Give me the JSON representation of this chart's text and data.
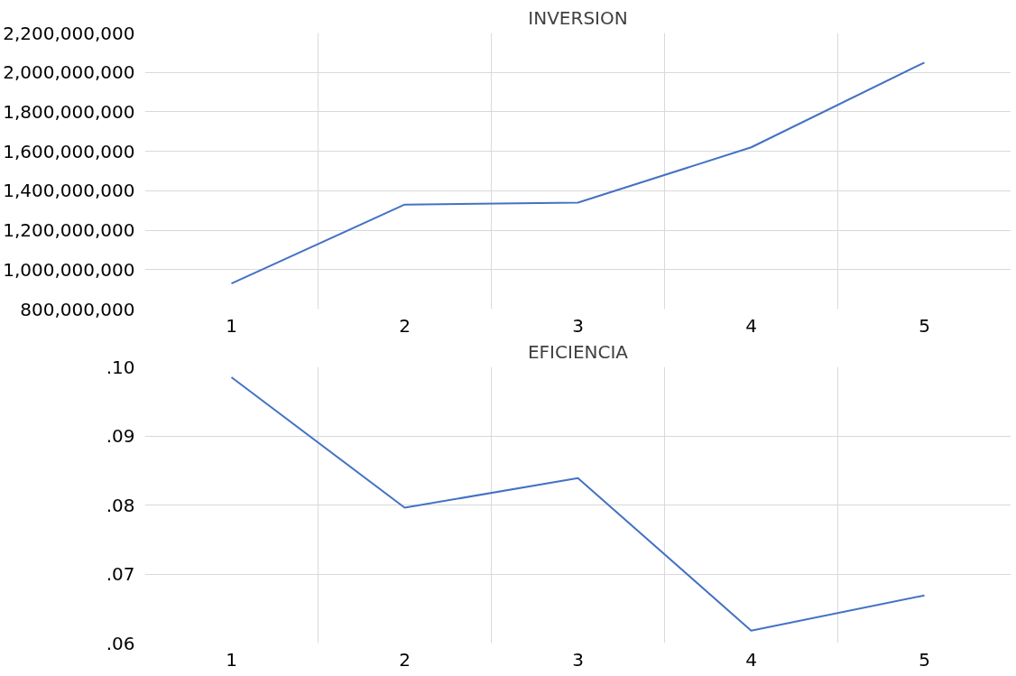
{
  "chart_data": [
    {
      "type": "line",
      "title": "INVERSION",
      "categories": [
        "1",
        "2",
        "3",
        "4",
        "5"
      ],
      "series": [
        {
          "color": "#4472c4",
          "values": [
            930000000,
            1330000000,
            1340000000,
            1620000000,
            2050000000
          ]
        }
      ],
      "ylim": [
        800000000,
        2200000000
      ],
      "yticks": [
        {
          "value": 800000000,
          "label": "800,000,000"
        },
        {
          "value": 1000000000,
          "label": "1,000,000,000"
        },
        {
          "value": 1200000000,
          "label": "1,200,000,000"
        },
        {
          "value": 1400000000,
          "label": "1,400,000,000"
        },
        {
          "value": 1600000000,
          "label": "1,600,000,000"
        },
        {
          "value": 1800000000,
          "label": "1,800,000,000"
        },
        {
          "value": 2000000000,
          "label": "2,000,000,000"
        },
        {
          "value": 2200000000,
          "label": "2,200,000,000"
        }
      ],
      "grid": true,
      "marker": "none",
      "line_style": "solid"
    },
    {
      "type": "line",
      "title": "EFICIENCIA",
      "categories": [
        "1",
        "2",
        "3",
        "4",
        "5"
      ],
      "series": [
        {
          "color": "#4472c4",
          "values": [
            0.0985,
            0.0796,
            0.0839,
            0.0618,
            0.0669
          ]
        }
      ],
      "ylim": [
        0.06,
        0.1
      ],
      "yticks": [
        {
          "value": 0.06,
          "label": ".06"
        },
        {
          "value": 0.07,
          "label": ".07"
        },
        {
          "value": 0.08,
          "label": ".08"
        },
        {
          "value": 0.09,
          "label": ".09"
        },
        {
          "value": 0.1,
          "label": ".10"
        }
      ],
      "grid": true,
      "marker": "none",
      "line_style": "solid"
    }
  ]
}
